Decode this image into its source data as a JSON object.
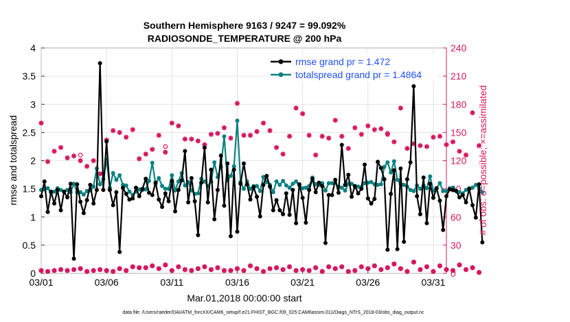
{
  "chart_data": {
    "type": "line",
    "title_line1": "Southern Hemisphere 9163 / 9247 = 99.092%",
    "title_line2": "RADIOSONDE_TEMPERATURE @ 200 hPa",
    "xlabel": "Mar.01,2018 00:00:00 start",
    "ylabel_left": "rmse and totalspread",
    "ylabel_right": "# of obs: o=possible; ×=assimilated",
    "footnote": "data file: /Users/raeder/DAI/ATM_forcXX/CAM6_setup/f.e21.FHIST_BGC.f09_025.CAM6assim.011/Diags_NTrS_2018-03/obs_diag_output.nc",
    "x_ticks": [
      {
        "x": 1,
        "label": "03/01"
      },
      {
        "x": 6,
        "label": "03/06"
      },
      {
        "x": 11,
        "label": "03/11"
      },
      {
        "x": 16,
        "label": "03/16"
      },
      {
        "x": 21,
        "label": "03/21"
      },
      {
        "x": 26,
        "label": "03/26"
      },
      {
        "x": 31,
        "label": "03/31"
      }
    ],
    "y_left_ticks": [
      "0",
      "0.5",
      "1",
      "1.5",
      "2",
      "2.5",
      "3",
      "3.5",
      "4"
    ],
    "y_right_ticks": [
      "0",
      "30",
      "60",
      "90",
      "120",
      "150",
      "180",
      "210",
      "240"
    ],
    "xlim": [
      1,
      32
    ],
    "ylim_left": [
      0,
      4
    ],
    "ylim_right": [
      0,
      240
    ],
    "colors": {
      "rmse": "#000000",
      "spread": "#0a8080",
      "obs": "#d6175f",
      "legend_text": "#1f4fff"
    },
    "legend": [
      {
        "label": "rmse grand pr = 1.472",
        "key": "rmse"
      },
      {
        "label": "totalspread grand pr = 1.4864",
        "key": "spread"
      }
    ],
    "series": [
      {
        "name": "rmse",
        "x_start": 1,
        "dx": 0.25,
        "values": [
          1.37,
          1.63,
          1.09,
          1.45,
          1.24,
          1.48,
          1.12,
          1.45,
          1.35,
          1.59,
          0.26,
          1.58,
          1.27,
          1.07,
          1.3,
          1.57,
          1.24,
          1.48,
          3.73,
          1.48,
          2.34,
          1.48,
          1.21,
          1.44,
          0.38,
          1.52,
          1.41,
          1.31,
          1.33,
          1.52,
          1.37,
          1.5,
          1.68,
          1.43,
          1.39,
          1.61,
          1.31,
          1.18,
          1.42,
          1.28,
          1.64,
          1.1,
          1.48,
          1.65,
          2.17,
          1.26,
          1.69,
          1.28,
          0.68,
          1.61,
          2.23,
          1.26,
          1.84,
          0.96,
          1.48,
          2.09,
          1.2,
          1.95,
          0.66,
          1.84,
          0.74,
          1.59,
          1.95,
          1.58,
          1.31,
          1.53,
          1.36,
          1.01,
          1.57,
          1.73,
          1.54,
          1.12,
          1.3,
          1.12,
          1.05,
          1.42,
          1.04,
          1.48,
          0.89,
          1.58,
          1.34,
          0.9,
          1.48,
          1.68,
          1.44,
          1.61,
          1.55,
          0.54,
          1.39,
          1.39,
          1.66,
          1.43,
          2.28,
          1.57,
          1.75,
          1.36,
          1.55,
          1.42,
          1.5,
          1.93,
          1.33,
          1.24,
          1.32,
          1.98,
          1.87,
          1.67,
          0.42,
          1.41,
          1.83,
          0.43,
          1.86,
          0.56,
          1.67,
          1.97,
          3.32,
          1.37,
          1.05,
          1.7,
          0.89,
          1.59,
          1.34,
          1.51,
          1.29,
          0.77,
          1.37,
          1.49,
          1.48,
          1.46,
          1.35,
          1.39,
          1.26,
          1.5,
          1.21,
          0.99,
          1.58,
          0.55
        ]
      },
      {
        "name": "totalspread",
        "x_start": 1,
        "dx": 0.25,
        "values": [
          1.48,
          1.49,
          1.51,
          1.43,
          1.45,
          1.51,
          1.48,
          1.45,
          1.48,
          1.44,
          1.59,
          1.44,
          1.44,
          1.4,
          1.46,
          1.47,
          1.54,
          1.86,
          1.58,
          1.67,
          2.02,
          1.52,
          1.78,
          1.66,
          1.74,
          1.57,
          1.56,
          1.45,
          1.39,
          1.45,
          1.49,
          1.48,
          1.49,
          1.64,
          1.96,
          1.59,
          1.69,
          1.55,
          1.5,
          1.5,
          1.74,
          1.47,
          1.63,
          1.78,
          1.56,
          1.62,
          1.47,
          1.41,
          1.42,
          1.68,
          1.63,
          1.55,
          1.63,
          1.97,
          1.71,
          1.89,
          2.43,
          1.65,
          1.73,
          1.9,
          2.71,
          1.62,
          1.5,
          1.63,
          1.5,
          1.55,
          1.55,
          1.46,
          1.71,
          1.62,
          1.57,
          1.44,
          1.63,
          1.57,
          1.64,
          1.56,
          1.52,
          1.59,
          1.63,
          1.56,
          1.51,
          1.52,
          1.55,
          1.7,
          1.58,
          1.57,
          1.6,
          1.47,
          1.6,
          1.6,
          1.61,
          1.54,
          1.52,
          1.47,
          1.59,
          1.59,
          1.54,
          1.54,
          1.53,
          1.6,
          1.61,
          1.62,
          1.58,
          1.57,
          1.58,
          1.89,
          1.97,
          1.79,
          1.99,
          1.66,
          1.59,
          1.57,
          1.54,
          1.48,
          1.46,
          1.56,
          1.5,
          1.56,
          1.51,
          1.72,
          1.47,
          1.51,
          1.6,
          1.46,
          1.46,
          1.51,
          1.52,
          1.47,
          1.44,
          1.42,
          1.48,
          1.51,
          1.52,
          1.57,
          1.51,
          1.44
        ]
      },
      {
        "name": "obs_assimilated",
        "x_start": 1,
        "dx": 0.5,
        "values": [
          160,
          119,
          130,
          134,
          123,
          125,
          120,
          114,
          120,
          106,
          142,
          152,
          150,
          145,
          153,
          122,
          127,
          132,
          147,
          129,
          160,
          157,
          143,
          143,
          141,
          137,
          148,
          149,
          155,
          144,
          181,
          147,
          147,
          151,
          160,
          152,
          134,
          127,
          146,
          176,
          170,
          147,
          126,
          146,
          144,
          163,
          146,
          133,
          155,
          148,
          157,
          153,
          154,
          148,
          140,
          176,
          133,
          138,
          136,
          135,
          145,
          146,
          137,
          140,
          130,
          126,
          171,
          136
        ]
      },
      {
        "name": "obs_possible",
        "x_start": 1,
        "dx": 0.5,
        "values": [
          3,
          2,
          3,
          4,
          3,
          4,
          5,
          2,
          3,
          4,
          3,
          2,
          5,
          3,
          7,
          6,
          6,
          8,
          5,
          9,
          3,
          7,
          4,
          3,
          5,
          7,
          4,
          6,
          3,
          3,
          5,
          3,
          8,
          5,
          2,
          5,
          6,
          4,
          7,
          3,
          4,
          3,
          6,
          2,
          7,
          5,
          7,
          2,
          3,
          7,
          5,
          8,
          4,
          6,
          10,
          5,
          2,
          12,
          4,
          7,
          2,
          8,
          4,
          3,
          9,
          4,
          6,
          1
        ]
      },
      {
        "name": "obs_possible_extra",
        "points": [
          {
            "x": 4,
            "v": 126
          },
          {
            "x": 10.5,
            "v": 135
          },
          {
            "x": 27.5,
            "v": 149
          }
        ]
      }
    ]
  }
}
